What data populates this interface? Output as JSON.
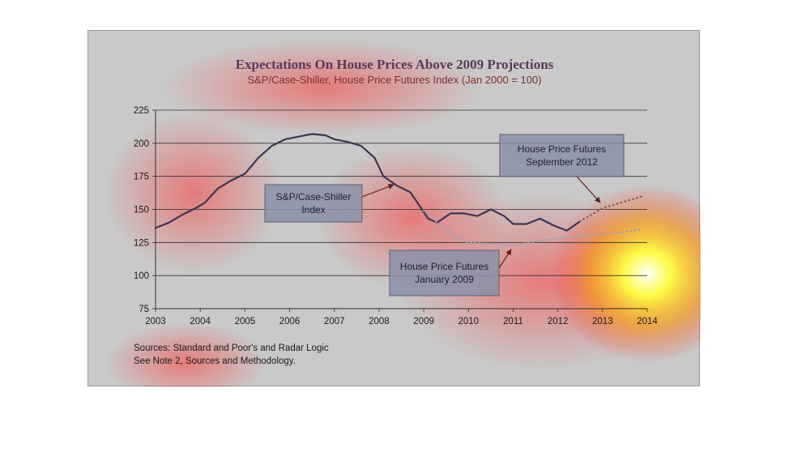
{
  "chart_data": {
    "type": "line",
    "title": "Expectations On House Prices Above 2009 Projections",
    "subtitle": "S&P/Case-Shiller, House Price Futures Index (Jan 2000 = 100)",
    "xlabel": "",
    "ylabel": "",
    "xlim": [
      2003,
      2014
    ],
    "ylim": [
      75,
      225
    ],
    "x_ticks": [
      "2003",
      "2004",
      "2005",
      "2006",
      "2007",
      "2008",
      "2009",
      "2010",
      "2011",
      "2012",
      "2013",
      "2014"
    ],
    "y_ticks": [
      75,
      100,
      125,
      150,
      175,
      200,
      225
    ],
    "grid": "horizontal",
    "series": [
      {
        "key": "cs_index",
        "style": "solid",
        "color": "#3c3650",
        "x": [
          2003.0,
          2003.3,
          2003.6,
          2003.9,
          2004.1,
          2004.4,
          2004.7,
          2005.0,
          2005.3,
          2005.6,
          2005.9,
          2006.2,
          2006.5,
          2006.8,
          2007.0,
          2007.3,
          2007.6,
          2007.9,
          2008.1,
          2008.4,
          2008.7,
          2008.9,
          2009.1,
          2009.3,
          2009.6,
          2009.9,
          2010.2,
          2010.5,
          2010.8,
          2011.0,
          2011.3,
          2011.6,
          2011.9,
          2012.2,
          2012.5
        ],
        "y": [
          136,
          140,
          146,
          151,
          155,
          166,
          172,
          177,
          189,
          198,
          203,
          205,
          207,
          206,
          203,
          201,
          198,
          189,
          175,
          168,
          163,
          153,
          143,
          140,
          147,
          147,
          145,
          150,
          145,
          139,
          139,
          143,
          138,
          134,
          141
        ]
      },
      {
        "key": "futures_sep_2012",
        "style": "dotted",
        "color": "#8f5a55",
        "x": [
          2012.5,
          2012.8,
          2013.0,
          2013.3,
          2013.6,
          2013.9
        ],
        "y": [
          141,
          147,
          151,
          154,
          157,
          160
        ]
      },
      {
        "key": "futures_jan_2009",
        "style": "dotted",
        "color": "#9aa3b5",
        "x": [
          2009.0,
          2009.4,
          2009.7,
          2010.0,
          2010.5,
          2011.0,
          2011.5,
          2012.0,
          2012.5,
          2013.0,
          2013.5,
          2013.9
        ],
        "y": [
          149,
          137,
          129,
          125,
          124,
          123,
          126,
          128,
          130,
          131,
          133,
          135
        ]
      }
    ],
    "annotations": [
      {
        "key": "cs",
        "lines": [
          "S&P/Case-Shiller",
          "Index"
        ]
      },
      {
        "key": "sep",
        "lines": [
          "House Price Futures",
          "September 2012"
        ]
      },
      {
        "key": "jan",
        "lines": [
          "House Price Futures",
          "January 2009"
        ]
      }
    ],
    "source_lines": [
      "Sources:  Standard and Poor's and Radar Logic",
      "See Note 2, Sources and Methodology."
    ]
  },
  "colors": {
    "title": "#5a3a5a",
    "subtitle": "#7a3030",
    "axis_text": "#1a1a1a",
    "grid": "#2f2f2f",
    "callout_fill": "#8a90a8",
    "callout_stroke": "#5a5f72"
  }
}
